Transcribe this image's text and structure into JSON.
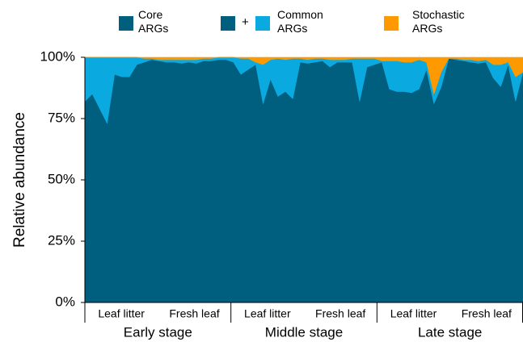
{
  "chart_data": {
    "type": "stacked_area",
    "y_label": "Relative abundance",
    "legend_joiner": "+",
    "categories": [
      null,
      null,
      null,
      null,
      null,
      null,
      null,
      null,
      null,
      null,
      null,
      null,
      null,
      null,
      null,
      null,
      null,
      null,
      null,
      null,
      null,
      null,
      null,
      null,
      null,
      null,
      null,
      null,
      null,
      null,
      null,
      null,
      null,
      null,
      null,
      null,
      null,
      null,
      null,
      null,
      null,
      null,
      null,
      null,
      null,
      null,
      null,
      null,
      null,
      null,
      null,
      null,
      null,
      null,
      null,
      null,
      null,
      null,
      null,
      null
    ],
    "x_groups": [
      {
        "name": "Early stage",
        "subgroups": [
          "Leaf litter",
          "Fresh leaf"
        ]
      },
      {
        "name": "Middle stage",
        "subgroups": [
          "Leaf litter",
          "Fresh leaf"
        ]
      },
      {
        "name": "Late stage",
        "subgroups": [
          "Leaf litter",
          "Fresh leaf"
        ]
      }
    ],
    "series": [
      {
        "name": "Core ARGs",
        "color": "#005f7f",
        "values": [
          82,
          85,
          79,
          73,
          93,
          92,
          92,
          97,
          98,
          99,
          98.5,
          98,
          98,
          97.5,
          98,
          97.5,
          98.5,
          98.5,
          99,
          99,
          98,
          93,
          95,
          97,
          81,
          91,
          84,
          86,
          83,
          98,
          97.5,
          98,
          98.5,
          96,
          98,
          98,
          98,
          82,
          96,
          97,
          98,
          87,
          86,
          86,
          85.5,
          87,
          95,
          81,
          88,
          99.5,
          99,
          98.5,
          98,
          97.5,
          98,
          91.5,
          88,
          97,
          82,
          94
        ]
      },
      {
        "name": "Common ARGs",
        "color": "#0aaae0",
        "values": [
          18,
          15,
          21,
          27,
          7,
          8,
          8,
          3,
          1.5,
          0.5,
          0.5,
          1,
          1,
          1.5,
          1,
          1.5,
          1,
          1,
          1,
          1,
          2,
          6.5,
          4.5,
          1,
          16,
          8,
          15.5,
          13,
          16.5,
          1.5,
          1.5,
          1.5,
          1,
          3,
          1,
          1,
          1.5,
          17.5,
          3.5,
          2.5,
          0.5,
          11.5,
          12.5,
          12,
          12.5,
          12,
          3,
          4,
          6,
          0,
          0.5,
          0.5,
          1,
          1,
          1,
          5.5,
          9,
          1,
          10,
          0
        ]
      },
      {
        "name": "Stochastic ARGs",
        "color": "#ff9900",
        "values": [
          0,
          0,
          0,
          0,
          0,
          0,
          0,
          0,
          0.5,
          0.5,
          1,
          1,
          1,
          1,
          1,
          1,
          0.5,
          0.5,
          0,
          0,
          0,
          0.5,
          0.5,
          2,
          3,
          1,
          0.5,
          1,
          0.5,
          0.5,
          1,
          0.5,
          0.5,
          1,
          1,
          1,
          0.5,
          0.5,
          0.5,
          0.5,
          1.5,
          1.5,
          1.5,
          2,
          2,
          1,
          2,
          15,
          6,
          0.5,
          0.5,
          1,
          1,
          1.5,
          1,
          3,
          3,
          2,
          8,
          6
        ]
      }
    ],
    "ylim": [
      0,
      100
    ],
    "yticks": [
      {
        "value": 0,
        "label": "0%"
      },
      {
        "value": 25,
        "label": "25%"
      },
      {
        "value": 50,
        "label": "50%"
      },
      {
        "value": 75,
        "label": "75%"
      },
      {
        "value": 100,
        "label": "100%"
      }
    ]
  }
}
